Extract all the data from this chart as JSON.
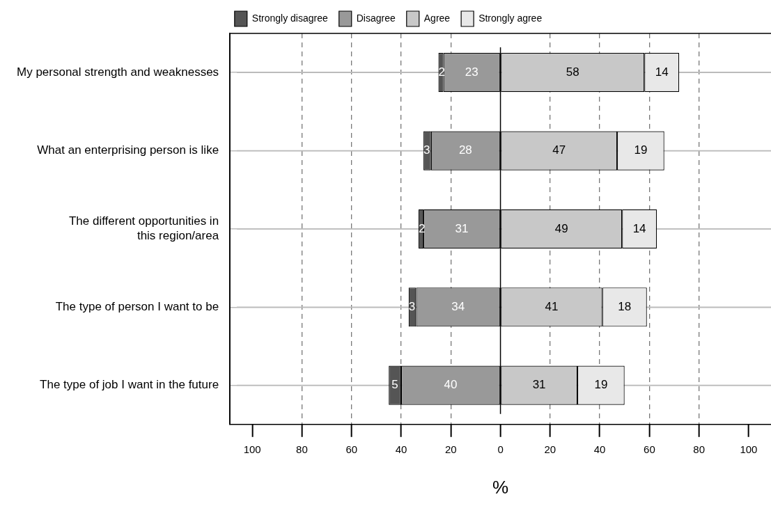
{
  "chart_data": {
    "type": "bar",
    "orientation": "horizontal",
    "data_labels": true,
    "xlabel": "%",
    "categories": [
      "My personal strength and weaknesses",
      "What an enterprising person is like",
      "The different opportunities in this region/area",
      "The type of person I want to be",
      "The type of job I want in the future"
    ],
    "series": [
      {
        "name": "Strongly disagree",
        "color": "#555555",
        "values": [
          2,
          3,
          2,
          3,
          5
        ],
        "base": [
          -25,
          -31,
          -33,
          -37,
          -45
        ]
      },
      {
        "name": "Disagree",
        "color": "#999999",
        "values": [
          23,
          28,
          31,
          34,
          40
        ],
        "base": [
          -23,
          -28,
          -31,
          -34,
          -40
        ]
      },
      {
        "name": "Agree",
        "color": "#c8c8c8",
        "values": [
          58,
          47,
          49,
          41,
          31
        ],
        "base": [
          0,
          0,
          0,
          0,
          0
        ]
      },
      {
        "name": "Strongly agree",
        "color": "#e8e8e8",
        "values": [
          14,
          19,
          14,
          18,
          19
        ],
        "base": [
          58,
          47,
          49,
          41,
          31
        ]
      }
    ],
    "xlim": [
      -109,
      109
    ],
    "xticks": [
      {
        "value": -100,
        "label": "100"
      },
      {
        "value": -80,
        "label": "80"
      },
      {
        "value": -60,
        "label": "60"
      },
      {
        "value": -40,
        "label": "40"
      },
      {
        "value": -20,
        "label": "20"
      },
      0,
      20,
      40,
      60,
      80,
      100
    ],
    "ref_lines": [
      {
        "axis": "x",
        "value": 0,
        "color": "#000000",
        "line_style": "solid"
      }
    ],
    "grid": true,
    "legend": "top"
  }
}
